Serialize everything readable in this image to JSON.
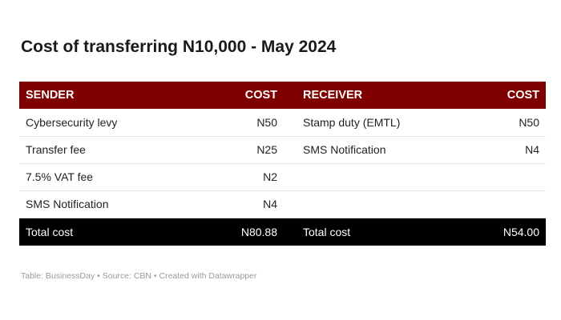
{
  "title": "Cost of transferring N10,000 - May 2024",
  "colors": {
    "header_bg": "#7f0000",
    "total_bg": "#000000"
  },
  "chart_data": {
    "type": "table",
    "columns": [
      "SENDER",
      "COST",
      "RECEIVER",
      "COST"
    ],
    "rows": [
      [
        "Cybersecurity levy",
        "N50",
        "Stamp duty (EMTL)",
        "N50"
      ],
      [
        "Transfer fee",
        "N25",
        "SMS Notification",
        "N4"
      ],
      [
        "7.5% VAT fee",
        "N2",
        "",
        ""
      ],
      [
        "SMS Notification",
        "N4",
        "",
        ""
      ]
    ],
    "total": [
      "Total cost",
      "N80.88",
      "Total cost",
      "N54.00"
    ]
  },
  "footer": "Table: BusinessDay • Source: CBN • Created with Datawrapper"
}
